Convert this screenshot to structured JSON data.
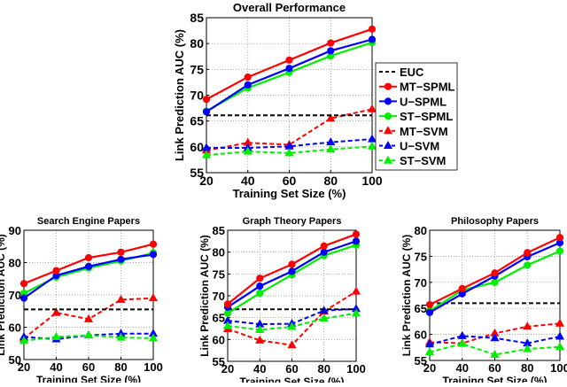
{
  "legend": {
    "position": "right of top chart",
    "entries": [
      {
        "name": "EUC",
        "color": "#000000",
        "style": "dashed",
        "marker": "none"
      },
      {
        "name": "MT−SPML",
        "color": "#ff0000",
        "style": "solid",
        "marker": "circle"
      },
      {
        "name": "U−SPML",
        "color": "#0000ff",
        "style": "solid",
        "marker": "circle"
      },
      {
        "name": "ST−SPML",
        "color": "#00ee00",
        "style": "solid",
        "marker": "circle"
      },
      {
        "name": "MT−SVM",
        "color": "#ff0000",
        "style": "dashed",
        "marker": "triangle"
      },
      {
        "name": "U−SVM",
        "color": "#0000ff",
        "style": "dashed",
        "marker": "triangle"
      },
      {
        "name": "ST−SVM",
        "color": "#00ee00",
        "style": "dashed",
        "marker": "triangle"
      }
    ]
  },
  "chart_data": [
    {
      "type": "line",
      "title": "Overall Performance",
      "xlabel": "Training Set Size (%)",
      "ylabel": "Link Prediction AUC (%)",
      "x": [
        20,
        40,
        60,
        80,
        100
      ],
      "xticks": [
        "20",
        "40",
        "60",
        "80",
        "100"
      ],
      "ylim": [
        55,
        85
      ],
      "yticks": [
        "55",
        "60",
        "65",
        "70",
        "75",
        "80",
        "85"
      ],
      "grid": true,
      "series": [
        {
          "name": "EUC",
          "values": [
            66.1,
            66.1,
            66.1,
            66.1,
            66.1
          ]
        },
        {
          "name": "MT−SPML",
          "values": [
            69.2,
            73.5,
            76.8,
            80.1,
            82.8
          ]
        },
        {
          "name": "U−SPML",
          "values": [
            66.8,
            72.0,
            75.2,
            78.6,
            80.8
          ]
        },
        {
          "name": "ST−SPML",
          "values": [
            66.9,
            71.4,
            74.4,
            77.6,
            80.2
          ]
        },
        {
          "name": "MT−SVM",
          "values": [
            59.3,
            60.8,
            60.4,
            65.5,
            67.3
          ]
        },
        {
          "name": "U−SVM",
          "values": [
            59.8,
            59.8,
            60.1,
            60.9,
            61.5
          ]
        },
        {
          "name": "ST−SVM",
          "values": [
            58.4,
            59.1,
            58.8,
            59.5,
            60.1
          ]
        }
      ]
    },
    {
      "type": "line",
      "title": "Search Engine Papers",
      "xlabel": "Training Set Size (%)",
      "ylabel": "Link Prediction AUC (%)",
      "x": [
        20,
        40,
        60,
        80,
        100
      ],
      "xticks": [
        "20",
        "40",
        "60",
        "80",
        "100"
      ],
      "ylim": [
        50,
        90
      ],
      "yticks": [
        "50",
        "60",
        "70",
        "80",
        "90"
      ],
      "grid": true,
      "series": [
        {
          "name": "EUC",
          "values": [
            65.5,
            65.5,
            65.5,
            65.5,
            65.5
          ]
        },
        {
          "name": "MT−SPML",
          "values": [
            73.5,
            77.5,
            81.5,
            83.2,
            85.7
          ]
        },
        {
          "name": "U−SPML",
          "values": [
            69.0,
            76.0,
            78.8,
            81.0,
            82.5
          ]
        },
        {
          "name": "ST−SPML",
          "values": [
            70.5,
            75.5,
            78.3,
            80.5,
            83.0
          ]
        },
        {
          "name": "MT−SVM",
          "values": [
            56.5,
            64.5,
            62.5,
            68.5,
            69.0
          ]
        },
        {
          "name": "U−SVM",
          "values": [
            57.0,
            56.3,
            57.5,
            58.0,
            58.0
          ]
        },
        {
          "name": "ST−SVM",
          "values": [
            55.8,
            57.0,
            57.5,
            56.8,
            56.6
          ]
        }
      ]
    },
    {
      "type": "line",
      "title": "Graph Theory Papers",
      "xlabel": "Training Set Size (%)",
      "ylabel": "Link Prediction AUC (%)",
      "x": [
        20,
        40,
        60,
        80,
        100
      ],
      "xticks": [
        "20",
        "40",
        "60",
        "80",
        "100"
      ],
      "ylim": [
        55,
        85
      ],
      "yticks": [
        "55",
        "60",
        "65",
        "70",
        "75",
        "80",
        "85"
      ],
      "grid": true,
      "series": [
        {
          "name": "EUC",
          "values": [
            66.9,
            66.9,
            66.9,
            66.9,
            66.9
          ]
        },
        {
          "name": "MT−SPML",
          "values": [
            68.1,
            74.0,
            77.2,
            81.4,
            84.1
          ]
        },
        {
          "name": "U−SPML",
          "values": [
            67.4,
            72.2,
            75.6,
            80.0,
            82.5
          ]
        },
        {
          "name": "ST−SPML",
          "values": [
            66.0,
            70.6,
            74.8,
            79.2,
            81.6
          ]
        },
        {
          "name": "MT−SVM",
          "values": [
            62.4,
            59.8,
            58.7,
            66.4,
            71.0
          ]
        },
        {
          "name": "U−SVM",
          "values": [
            64.3,
            63.5,
            63.6,
            66.6,
            67.0
          ]
        },
        {
          "name": "ST−SVM",
          "values": [
            63.1,
            62.2,
            62.9,
            64.8,
            66.0
          ]
        }
      ]
    },
    {
      "type": "line",
      "title": "Philosophy Papers",
      "xlabel": "Training Set Size (%)",
      "ylabel": "Link Prediction AUC (%)",
      "x": [
        20,
        40,
        60,
        80,
        100
      ],
      "xticks": [
        "20",
        "40",
        "60",
        "80",
        "100"
      ],
      "ylim": [
        55,
        80
      ],
      "yticks": [
        "55",
        "60",
        "65",
        "70",
        "75",
        "80"
      ],
      "grid": true,
      "series": [
        {
          "name": "EUC",
          "values": [
            66.0,
            66.0,
            66.0,
            66.0,
            66.0
          ]
        },
        {
          "name": "MT−SPML",
          "values": [
            65.7,
            68.8,
            71.8,
            75.7,
            78.6
          ]
        },
        {
          "name": "U−SPML",
          "values": [
            64.2,
            67.8,
            71.2,
            74.9,
            77.6
          ]
        },
        {
          "name": "ST−SPML",
          "values": [
            64.5,
            68.5,
            70.0,
            73.3,
            76.0
          ]
        },
        {
          "name": "MT−SVM",
          "values": [
            58.5,
            58.3,
            60.2,
            61.5,
            62.1
          ]
        },
        {
          "name": "U−SVM",
          "values": [
            58.1,
            59.7,
            59.3,
            58.3,
            59.6
          ]
        },
        {
          "name": "ST−SVM",
          "values": [
            56.6,
            58.2,
            56.1,
            57.2,
            57.6
          ]
        }
      ]
    }
  ]
}
